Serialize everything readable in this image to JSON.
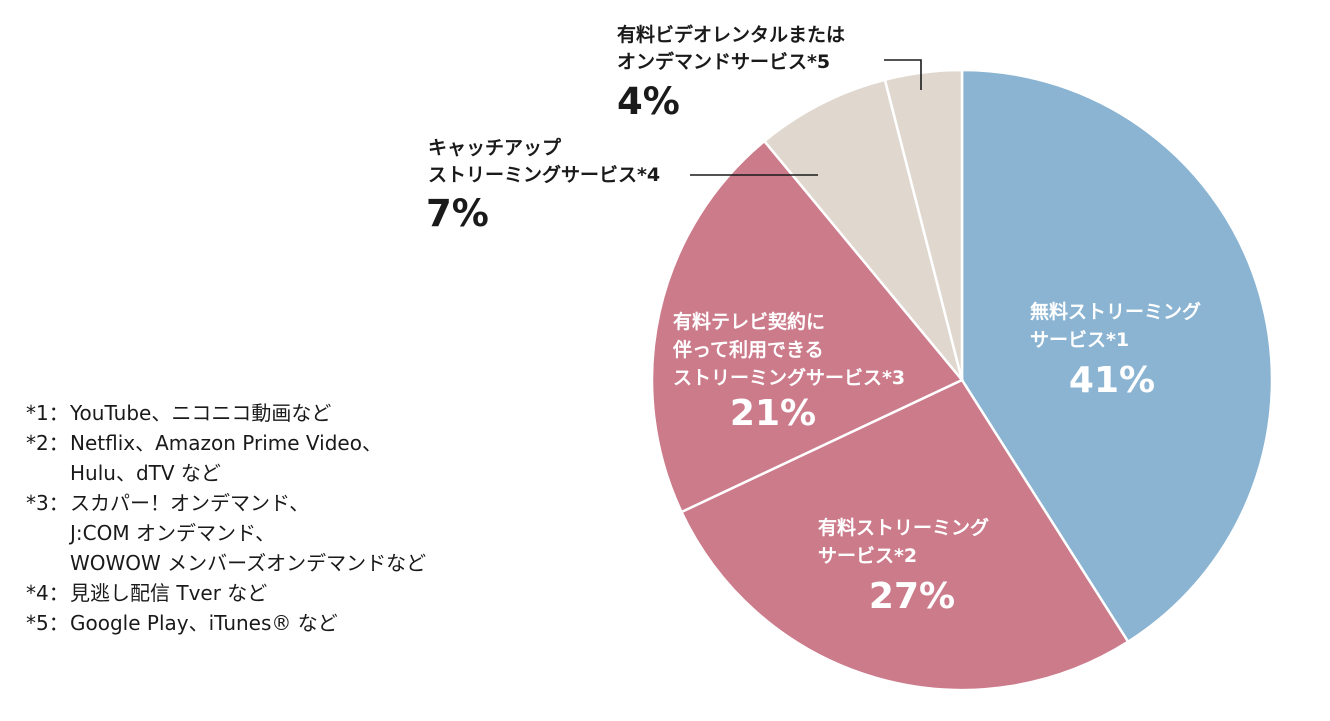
{
  "chart_data": {
    "type": "pie",
    "slices": [
      {
        "label_lines": [
          "無料ストリーミング",
          "サービス*1"
        ],
        "value": 41,
        "value_label": "41%",
        "color": "#8ab4d2"
      },
      {
        "label_lines": [
          "有料ストリーミング",
          "サービス*2"
        ],
        "value": 27,
        "value_label": "27%",
        "color": "#cc7b8b"
      },
      {
        "label_lines": [
          "有料テレビ契約に",
          "伴って利用できる",
          "ストリーミングサービス*3"
        ],
        "value": 21,
        "value_label": "21%",
        "color": "#cc7b8b"
      },
      {
        "label_lines": [
          "キャッチアップ",
          "ストリーミングサービス*4"
        ],
        "value": 7,
        "value_label": "7%",
        "color": "#e0d8ce"
      },
      {
        "label_lines": [
          "有料ビデオレンタルまたは",
          "オンデマンドサービス*5"
        ],
        "value": 4,
        "value_label": "4%",
        "color": "#e0d8ce"
      }
    ],
    "start_angle_deg": 0,
    "direction": "clockwise"
  },
  "notes": [
    {
      "key": "*1：",
      "lines": [
        "YouTube、ニコニコ動画など"
      ]
    },
    {
      "key": "*2：",
      "lines": [
        "Netflix、Amazon Prime Video、",
        "Hulu、dTV など"
      ]
    },
    {
      "key": "*3：",
      "lines": [
        "スカパー！オンデマンド、",
        "J:COM オンデマンド、",
        "WOWOW メンバーズオンデマンドなど"
      ]
    },
    {
      "key": "*4：",
      "lines": [
        "見逃し配信 Tver など"
      ]
    },
    {
      "key": "*5：",
      "lines": [
        "Google Play、iTunes® など"
      ]
    }
  ]
}
